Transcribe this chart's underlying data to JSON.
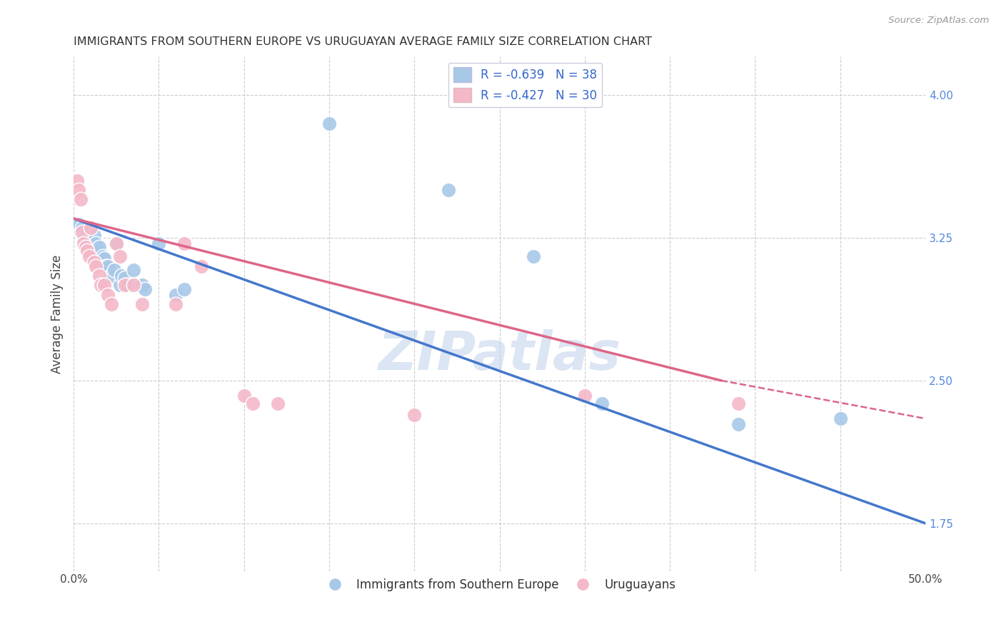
{
  "title": "IMMIGRANTS FROM SOUTHERN EUROPE VS URUGUAYAN AVERAGE FAMILY SIZE CORRELATION CHART",
  "source": "Source: ZipAtlas.com",
  "ylabel": "Average Family Size",
  "xlim": [
    0.0,
    0.5
  ],
  "ylim": [
    1.5,
    4.2
  ],
  "yticks_right": [
    1.75,
    2.5,
    3.25,
    4.0
  ],
  "xticks": [
    0.0,
    0.05,
    0.1,
    0.15,
    0.2,
    0.25,
    0.3,
    0.35,
    0.4,
    0.45,
    0.5
  ],
  "xtick_labels": [
    "0.0%",
    "",
    "",
    "",
    "",
    "",
    "",
    "",
    "",
    "",
    "50.0%"
  ],
  "blue_R": -0.639,
  "blue_N": 38,
  "pink_R": -0.427,
  "pink_N": 30,
  "blue_color": "#a8c8e8",
  "pink_color": "#f4b8c8",
  "blue_line_color": "#4477cc",
  "pink_line_color": "#dd6688",
  "blue_line_x0": 0.0,
  "blue_line_y0": 3.35,
  "blue_line_x1": 0.5,
  "blue_line_y1": 1.75,
  "pink_line_x0": 0.0,
  "pink_line_y0": 3.35,
  "pink_line_solid_x1": 0.38,
  "pink_line_solid_y1": 2.5,
  "pink_line_dash_x1": 0.5,
  "pink_line_dash_y1": 2.3,
  "blue_points_x": [
    0.002,
    0.003,
    0.004,
    0.005,
    0.006,
    0.007,
    0.008,
    0.009,
    0.01,
    0.011,
    0.012,
    0.013,
    0.014,
    0.015,
    0.016,
    0.017,
    0.018,
    0.019,
    0.02,
    0.022,
    0.024,
    0.025,
    0.027,
    0.028,
    0.03,
    0.032,
    0.035,
    0.04,
    0.042,
    0.05,
    0.06,
    0.065,
    0.15,
    0.22,
    0.27,
    0.31,
    0.39,
    0.45
  ],
  "blue_points_y": [
    3.3,
    3.32,
    3.28,
    3.3,
    3.25,
    3.26,
    3.28,
    3.22,
    3.24,
    3.2,
    3.26,
    3.22,
    3.18,
    3.2,
    3.12,
    3.15,
    3.14,
    3.1,
    3.1,
    3.05,
    3.08,
    3.22,
    3.0,
    3.05,
    3.04,
    3.0,
    3.08,
    3.0,
    2.98,
    3.22,
    2.95,
    2.98,
    3.85,
    3.5,
    3.15,
    2.38,
    2.27,
    2.3
  ],
  "pink_points_x": [
    0.002,
    0.003,
    0.004,
    0.005,
    0.006,
    0.007,
    0.008,
    0.009,
    0.01,
    0.012,
    0.013,
    0.015,
    0.016,
    0.018,
    0.02,
    0.022,
    0.025,
    0.027,
    0.03,
    0.035,
    0.04,
    0.06,
    0.065,
    0.075,
    0.1,
    0.105,
    0.12,
    0.2,
    0.3,
    0.39
  ],
  "pink_points_y": [
    3.55,
    3.5,
    3.45,
    3.28,
    3.22,
    3.2,
    3.18,
    3.15,
    3.3,
    3.12,
    3.1,
    3.05,
    3.0,
    3.0,
    2.95,
    2.9,
    3.22,
    3.15,
    3.0,
    3.0,
    2.9,
    2.9,
    3.22,
    3.1,
    2.42,
    2.38,
    2.38,
    2.32,
    2.42,
    2.38
  ],
  "grid_color": "#cccccc",
  "watermark_text": "ZIPatlas",
  "legend_blue_label": "Immigrants from Southern Europe",
  "legend_pink_label": "Uruguayans"
}
